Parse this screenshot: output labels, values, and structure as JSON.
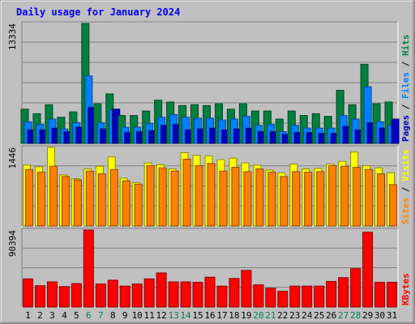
{
  "chart_data": {
    "type": "bar",
    "title": "Daily usage for January 2024",
    "days": [
      1,
      2,
      3,
      4,
      5,
      6,
      7,
      8,
      9,
      10,
      11,
      12,
      13,
      14,
      15,
      16,
      17,
      18,
      19,
      20,
      21,
      22,
      23,
      24,
      25,
      26,
      27,
      28,
      29,
      30,
      31
    ],
    "weekend_days": [
      6,
      7,
      13,
      14,
      20,
      21,
      27,
      28
    ],
    "panels": [
      {
        "id": "hits",
        "max_label": "13334",
        "ylim": [
          0,
          13334
        ],
        "series": [
          {
            "name": "Hits",
            "color": "#008040",
            "values": [
              3800,
              3300,
              4300,
              2900,
              3500,
              13334,
              4400,
              5500,
              3100,
              3100,
              3600,
              4800,
              4600,
              4200,
              4300,
              4200,
              4400,
              3800,
              4400,
              3600,
              3600,
              2700,
              3600,
              3100,
              3300,
              3000,
              5900,
              4300,
              8800,
              4400,
              4600
            ]
          },
          {
            "name": "Files",
            "color": "#0080ff",
            "values": [
              2400,
              2100,
              2700,
              1600,
              2300,
              7500,
              2300,
              3700,
              1800,
              1800,
              2200,
              2900,
              3200,
              2900,
              2800,
              2800,
              2600,
              2700,
              3000,
              2000,
              2100,
              1300,
              2000,
              1700,
              1700,
              1700,
              3100,
              2700,
              6300,
              2400,
              2000
            ]
          },
          {
            "name": "Pages",
            "color": "#0000c0",
            "values": [
              1500,
              1500,
              1700,
              1300,
              1800,
              4000,
              1600,
              3800,
              1200,
              1300,
              1400,
              2000,
              2100,
              1500,
              1600,
              1700,
              1500,
              1600,
              1700,
              1300,
              1300,
              1000,
              1200,
              1200,
              1100,
              1100,
              1900,
              1500,
              2300,
              1700,
              2700
            ]
          }
        ],
        "side_labels": [
          {
            "text": "Pages",
            "color": "#0000c0"
          },
          {
            "text": " / ",
            "color": "#000000"
          },
          {
            "text": "Files",
            "color": "#0080ff"
          },
          {
            "text": " / ",
            "color": "#000000"
          },
          {
            "text": "Hits",
            "color": "#008040"
          }
        ]
      },
      {
        "id": "visits",
        "max_label": "1446",
        "ylim": [
          0,
          1446
        ],
        "series": [
          {
            "name": "Visits",
            "color": "#ffff00",
            "values": [
              1120,
              1090,
              1446,
              940,
              870,
              1050,
              1100,
              1270,
              880,
              800,
              1160,
              1130,
              1050,
              1350,
              1300,
              1290,
              1220,
              1250,
              1160,
              1120,
              1030,
              980,
              1140,
              1050,
              1060,
              1140,
              1190,
              1360,
              1110,
              1070,
              980
            ]
          },
          {
            "name": "Sites",
            "color": "#ff8000",
            "values": [
              1040,
              990,
              1100,
              910,
              850,
              1010,
              960,
              1040,
              830,
              770,
              1110,
              1070,
              1010,
              1230,
              1110,
              1150,
              1010,
              1080,
              1000,
              1050,
              990,
              910,
              1000,
              990,
              1000,
              1110,
              1100,
              1080,
              1040,
              960,
              760
            ]
          }
        ],
        "side_labels": [
          {
            "text": "Sites",
            "color": "#ff8000"
          },
          {
            "text": " / ",
            "color": "#000000"
          },
          {
            "text": "Visits",
            "color": "#ffff00"
          }
        ]
      },
      {
        "id": "kbytes",
        "max_label": "90394",
        "ylim": [
          0,
          90394
        ],
        "series": [
          {
            "name": "KBytes",
            "color": "#ff0000",
            "values": [
              33000,
              25000,
              29500,
              24000,
              27500,
              90394,
              27000,
              31500,
              24500,
              27000,
              33000,
              40000,
              29500,
              29500,
              29000,
              35000,
              24500,
              33500,
              43000,
              26000,
              22000,
              18500,
              24500,
              24500,
              24500,
              30000,
              34500,
              45000,
              88000,
              29000,
              29000
            ]
          }
        ],
        "side_labels": [
          {
            "text": "KBytes",
            "color": "#ff0000"
          }
        ]
      }
    ]
  }
}
